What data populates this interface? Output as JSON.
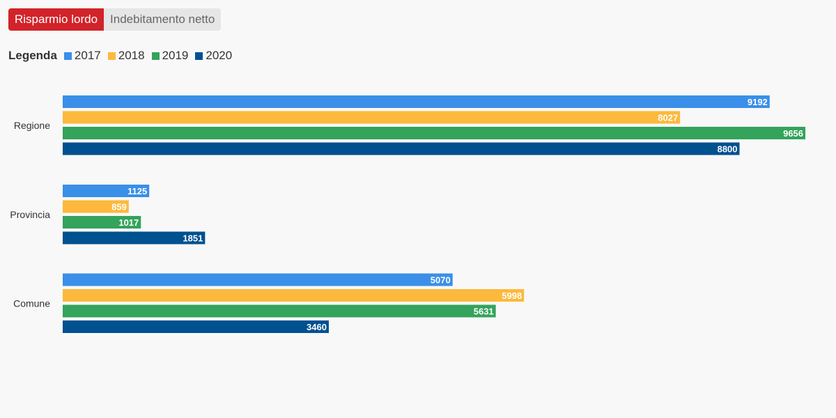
{
  "tabs": [
    {
      "label": "Risparmio lordo",
      "active": true
    },
    {
      "label": "Indebitamento netto",
      "active": false
    }
  ],
  "legend": {
    "title": "Legenda"
  },
  "colors": {
    "tab_active": "#d2232a",
    "tab_inactive": "#e6e6e6",
    "value_label": "#ffffff"
  },
  "chart_data": {
    "type": "bar",
    "orientation": "horizontal",
    "categories": [
      "Regione",
      "Provincia",
      "Comune"
    ],
    "series": [
      {
        "name": "2017",
        "color": "#3a8fe8",
        "values": [
          9192,
          1125,
          5070
        ]
      },
      {
        "name": "2018",
        "color": "#fdb93c",
        "values": [
          8027,
          859,
          5998
        ]
      },
      {
        "name": "2019",
        "color": "#34a35c",
        "values": [
          9656,
          1017,
          5631
        ]
      },
      {
        "name": "2020",
        "color": "#005190",
        "values": [
          8800,
          1851,
          3460
        ]
      }
    ],
    "xlim": [
      0,
      10000
    ],
    "grid": false,
    "legend_position": "top-left",
    "data_labels": true,
    "title": "",
    "xlabel": "",
    "ylabel": ""
  }
}
